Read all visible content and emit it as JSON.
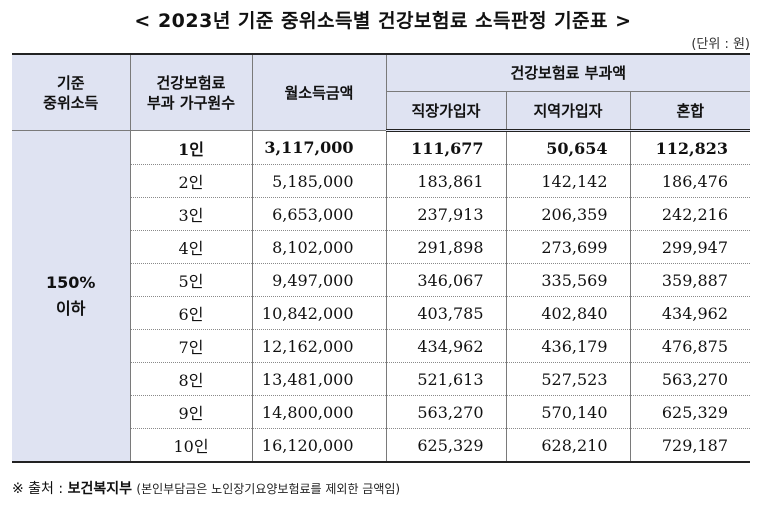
{
  "title": "< 2023년 기준 중위소득별 건강보험료 소득판정 기준표 >",
  "unit": "(단위 : 원)",
  "headers": {
    "median_income": "기준\n중위소득",
    "household": "건강보험료\n부과 가구원수",
    "monthly_income": "월소득금액",
    "premium": "건강보험료 부과액",
    "employee": "직장가입자",
    "regional": "지역가입자",
    "mixed": "혼합"
  },
  "group_label": "150%\n이하",
  "rows": [
    {
      "members": "1인",
      "income": "3,117,000",
      "employee": "111,677",
      "regional": "50,654",
      "mixed": "112,823"
    },
    {
      "members": "2인",
      "income": "5,185,000",
      "employee": "183,861",
      "regional": "142,142",
      "mixed": "186,476"
    },
    {
      "members": "3인",
      "income": "6,653,000",
      "employee": "237,913",
      "regional": "206,359",
      "mixed": "242,216"
    },
    {
      "members": "4인",
      "income": "8,102,000",
      "employee": "291,898",
      "regional": "273,699",
      "mixed": "299,947"
    },
    {
      "members": "5인",
      "income": "9,497,000",
      "employee": "346,067",
      "regional": "335,569",
      "mixed": "359,887"
    },
    {
      "members": "6인",
      "income": "10,842,000",
      "employee": "403,785",
      "regional": "402,840",
      "mixed": "434,962"
    },
    {
      "members": "7인",
      "income": "12,162,000",
      "employee": "434,962",
      "regional": "436,179",
      "mixed": "476,875"
    },
    {
      "members": "8인",
      "income": "13,481,000",
      "employee": "521,613",
      "regional": "527,523",
      "mixed": "563,270"
    },
    {
      "members": "9인",
      "income": "14,800,000",
      "employee": "563,270",
      "regional": "570,140",
      "mixed": "625,329"
    },
    {
      "members": "10인",
      "income": "16,120,000",
      "employee": "625,329",
      "regional": "628,210",
      "mixed": "729,187"
    }
  ],
  "source": {
    "label": "※ 출처 :",
    "name": "보건복지부",
    "note": "(본인부담금은 노인장기요양보험료를 제외한 금액임)"
  }
}
